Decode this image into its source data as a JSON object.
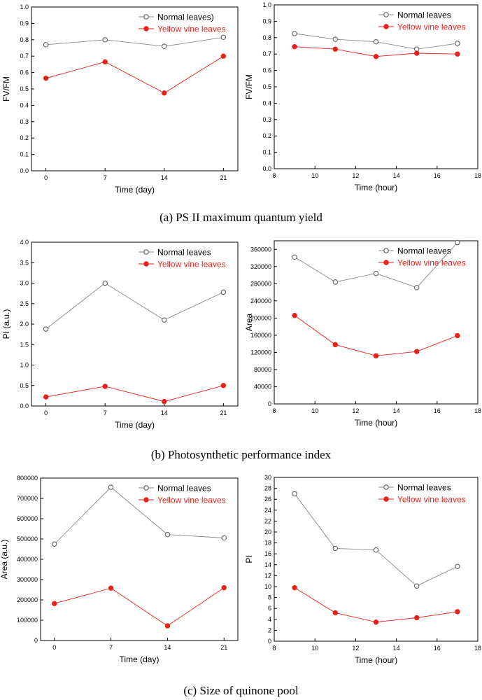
{
  "captions": [
    "(a) PS II maximum quantum yield",
    "(b) Photosynthetic performance index",
    "(c) Size of quinone pool"
  ],
  "series_colors": {
    "normal": "#888888",
    "yellow": "#e8211a"
  },
  "chart_data": [
    {
      "id": "a-left",
      "type": "line",
      "xlabel": "Time (day)",
      "ylabel": "FV/FM",
      "x": [
        0,
        7,
        14,
        21
      ],
      "xticks": [
        "0",
        "7",
        "14",
        "21"
      ],
      "ylim": [
        0,
        1.0
      ],
      "yticks": [
        "0.0",
        "0.1",
        "0.2",
        "0.3",
        "0.4",
        "0.5",
        "0.6",
        "0.7",
        "0.8",
        "0.9",
        "1.0"
      ],
      "legend_position": "top-right",
      "series": [
        {
          "name": "Normal leaves)",
          "values": [
            0.77,
            0.8,
            0.76,
            0.815
          ]
        },
        {
          "name": "Yellow vine leaves",
          "values": [
            0.565,
            0.665,
            0.475,
            0.7
          ]
        }
      ]
    },
    {
      "id": "a-right",
      "type": "line",
      "xlabel": "Time (hour)",
      "ylabel": "FV/FM",
      "x": [
        9,
        11,
        13,
        15,
        17
      ],
      "xlim": [
        8,
        18
      ],
      "xticks": [
        "8",
        "10",
        "12",
        "14",
        "16",
        "18"
      ],
      "ylim": [
        0,
        1.0
      ],
      "yticks": [
        "0.0",
        "0.1",
        "0.2",
        "0.3",
        "0.4",
        "0.5",
        "0.6",
        "0.7",
        "0.8",
        "0.9",
        "1.0"
      ],
      "legend_position": "top-right",
      "series": [
        {
          "name": "Normal leaves",
          "values": [
            0.825,
            0.79,
            0.775,
            0.73,
            0.765
          ]
        },
        {
          "name": "Yellow vine leaves",
          "values": [
            0.745,
            0.73,
            0.685,
            0.705,
            0.7
          ]
        }
      ]
    },
    {
      "id": "b-left",
      "type": "line",
      "xlabel": "Time (day)",
      "ylabel": "PI (a.u.)",
      "x": [
        0,
        7,
        14,
        21
      ],
      "xticks": [
        "0",
        "7",
        "14",
        "21"
      ],
      "ylim": [
        0,
        4.0
      ],
      "yticks": [
        "0.0",
        "0.5",
        "1.0",
        "1.5",
        "2.0",
        "2.5",
        "3.0",
        "3.5",
        "4.0"
      ],
      "legend_position": "top-right",
      "series": [
        {
          "name": "Normal leaves",
          "values": [
            1.88,
            3.0,
            2.1,
            2.78
          ]
        },
        {
          "name": "Yellow vine leaves",
          "values": [
            0.22,
            0.48,
            0.11,
            0.5
          ]
        }
      ]
    },
    {
      "id": "b-right",
      "type": "line",
      "xlabel": "Time (hour)",
      "ylabel": "Area",
      "x": [
        9,
        11,
        13,
        15,
        17
      ],
      "xlim": [
        8,
        18
      ],
      "xticks": [
        "8",
        "10",
        "12",
        "14",
        "16",
        "18"
      ],
      "ylim": [
        0,
        380000
      ],
      "yticks": [
        "0",
        "40000",
        "80000",
        "120000",
        "160000",
        "200000",
        "240000",
        "280000",
        "320000",
        "360000"
      ],
      "ytick_values": [
        0,
        40000,
        80000,
        120000,
        160000,
        200000,
        240000,
        280000,
        320000,
        360000
      ],
      "legend_position": "top-right",
      "series": [
        {
          "name": "Normal leaves",
          "values": [
            342000,
            284000,
            304000,
            271000,
            376000
          ]
        },
        {
          "name": "Yellow vine leaves",
          "values": [
            206000,
            138000,
            112000,
            122000,
            159000
          ]
        }
      ]
    },
    {
      "id": "c-left",
      "type": "line",
      "xlabel": "Time (day)",
      "ylabel": "Area (a.u.)",
      "x": [
        0,
        7,
        14,
        21
      ],
      "xticks": [
        "0",
        "7",
        "14",
        "21"
      ],
      "ylim": [
        0,
        800000
      ],
      "yticks": [
        "0",
        "100000",
        "200000",
        "300000",
        "400000",
        "500000",
        "600000",
        "700000",
        "800000"
      ],
      "legend_position": "top-right",
      "series": [
        {
          "name": "Normal leaves",
          "values": [
            475000,
            755000,
            522000,
            505000
          ]
        },
        {
          "name": "Yellow vine leaves",
          "values": [
            182000,
            258000,
            72000,
            260000
          ]
        }
      ]
    },
    {
      "id": "c-right",
      "type": "line",
      "xlabel": "Time (hour)",
      "ylabel": "PI",
      "x": [
        9,
        11,
        13,
        15,
        17
      ],
      "xlim": [
        8,
        18
      ],
      "xticks": [
        "8",
        "10",
        "12",
        "14",
        "16",
        "18"
      ],
      "ylim": [
        0,
        30
      ],
      "yticks": [
        "0",
        "2",
        "4",
        "6",
        "8",
        "10",
        "12",
        "14",
        "16",
        "18",
        "20",
        "22",
        "24",
        "26",
        "28",
        "30"
      ],
      "legend_position": "top-right",
      "series": [
        {
          "name": "Normal leaves",
          "values": [
            27.0,
            17.0,
            16.7,
            10.1,
            13.7
          ]
        },
        {
          "name": "Yellow vine leaves",
          "values": [
            9.8,
            5.2,
            3.5,
            4.3,
            5.4
          ]
        }
      ]
    }
  ]
}
